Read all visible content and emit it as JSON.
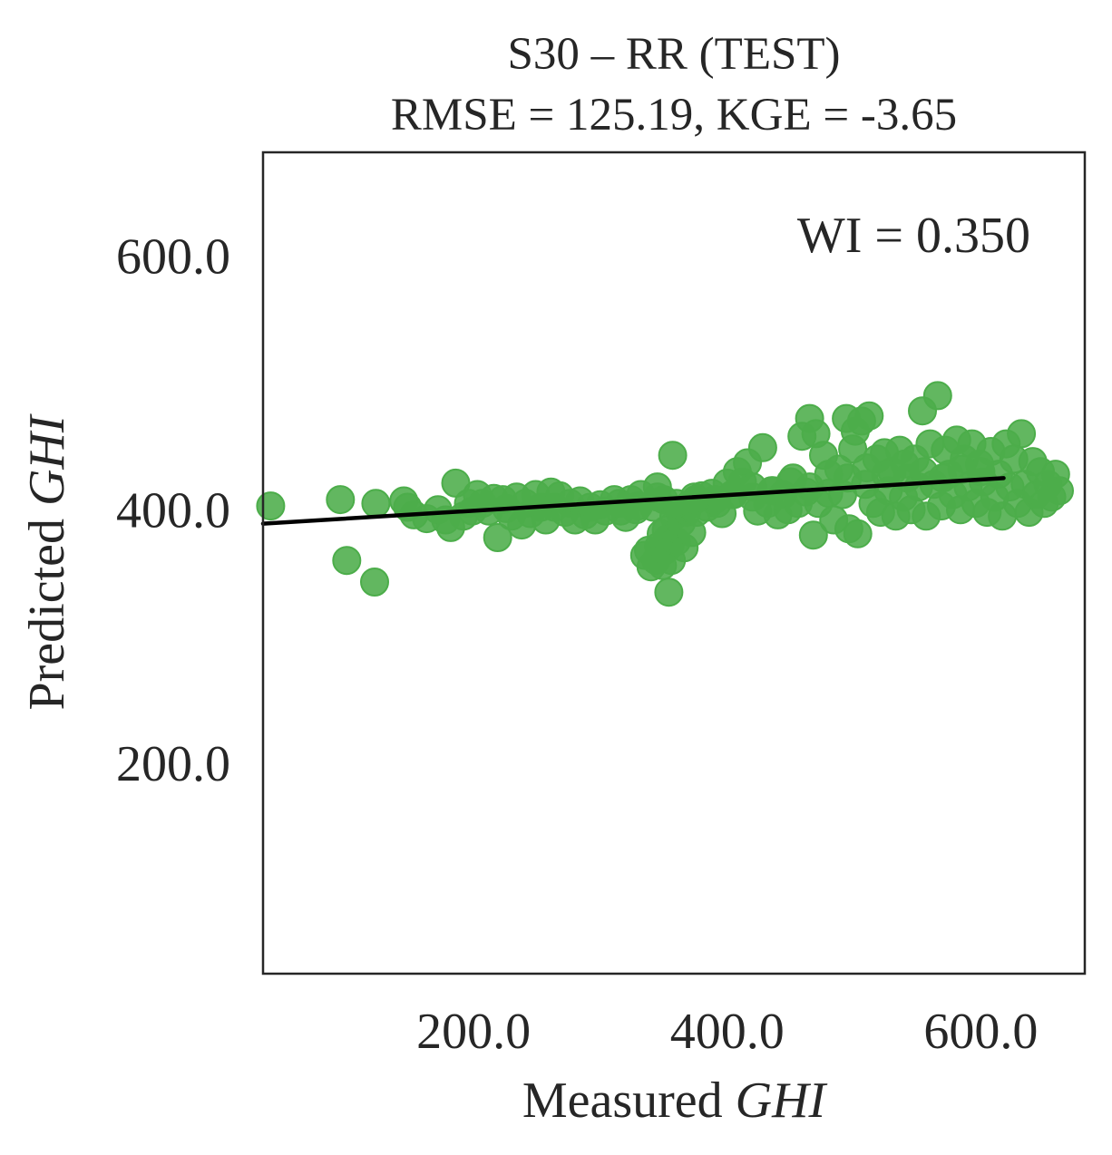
{
  "chart_data": {
    "type": "scatter",
    "title_line1": "S30 – RR (TEST)",
    "title_line2": "RMSE = 125.19, KGE = -3.65",
    "xlabel": "Measured",
    "xlabel_italic": "GHI",
    "ylabel": "Predicted",
    "ylabel_italic": "GHI",
    "annotation": "WI = 0.350",
    "xlim": [
      34,
      682
    ],
    "ylim": [
      34,
      682
    ],
    "xticks": [
      200,
      400,
      600
    ],
    "yticks": [
      200,
      400,
      600
    ],
    "xtick_labels": [
      "200.0",
      "400.0",
      "600.0"
    ],
    "ytick_labels": [
      "200.0",
      "400.0",
      "600.0"
    ],
    "grid": false,
    "point_color": "#4cad4a",
    "line_color": "#000000",
    "regression_line": {
      "x": [
        34,
        618
      ],
      "y": [
        389,
        425
      ]
    },
    "points": [
      [
        40,
        403
      ],
      [
        95,
        408
      ],
      [
        100,
        360
      ],
      [
        122,
        343
      ],
      [
        123,
        405
      ],
      [
        145,
        407
      ],
      [
        148,
        402
      ],
      [
        153,
        396
      ],
      [
        163,
        393
      ],
      [
        172,
        400
      ],
      [
        178,
        392
      ],
      [
        182,
        386
      ],
      [
        186,
        421
      ],
      [
        192,
        395
      ],
      [
        196,
        405
      ],
      [
        199,
        399
      ],
      [
        203,
        412
      ],
      [
        207,
        405
      ],
      [
        212,
        399
      ],
      [
        216,
        409
      ],
      [
        219,
        378
      ],
      [
        223,
        408
      ],
      [
        226,
        401
      ],
      [
        230,
        395
      ],
      [
        234,
        410
      ],
      [
        238,
        388
      ],
      [
        241,
        405
      ],
      [
        245,
        397
      ],
      [
        249,
        412
      ],
      [
        253,
        402
      ],
      [
        257,
        392
      ],
      [
        261,
        414
      ],
      [
        264,
        402
      ],
      [
        268,
        411
      ],
      [
        272,
        398
      ],
      [
        276,
        405
      ],
      [
        280,
        392
      ],
      [
        284,
        407
      ],
      [
        288,
        396
      ],
      [
        292,
        402
      ],
      [
        296,
        392
      ],
      [
        300,
        404
      ],
      [
        304,
        399
      ],
      [
        311,
        408
      ],
      [
        316,
        399
      ],
      [
        320,
        394
      ],
      [
        324,
        408
      ],
      [
        328,
        400
      ],
      [
        332,
        412
      ],
      [
        335,
        364
      ],
      [
        338,
        368
      ],
      [
        340,
        355
      ],
      [
        342,
        402
      ],
      [
        344,
        360
      ],
      [
        345,
        418
      ],
      [
        346,
        371
      ],
      [
        348,
        381
      ],
      [
        349,
        356
      ],
      [
        350,
        408
      ],
      [
        351,
        368
      ],
      [
        352,
        384
      ],
      [
        353,
        377
      ],
      [
        354,
        335
      ],
      [
        355,
        372
      ],
      [
        356,
        360
      ],
      [
        357,
        443
      ],
      [
        358,
        395
      ],
      [
        360,
        375
      ],
      [
        362,
        400
      ],
      [
        364,
        390
      ],
      [
        366,
        370
      ],
      [
        368,
        398
      ],
      [
        370,
        404
      ],
      [
        372,
        382
      ],
      [
        374,
        410
      ],
      [
        376,
        398
      ],
      [
        380,
        411
      ],
      [
        384,
        402
      ],
      [
        388,
        413
      ],
      [
        392,
        405
      ],
      [
        396,
        397
      ],
      [
        400,
        421
      ],
      [
        404,
        412
      ],
      [
        408,
        430
      ],
      [
        412,
        422
      ],
      [
        416,
        437
      ],
      [
        420,
        410
      ],
      [
        424,
        399
      ],
      [
        428,
        449
      ],
      [
        432,
        405
      ],
      [
        436,
        415
      ],
      [
        440,
        396
      ],
      [
        444,
        412
      ],
      [
        448,
        400
      ],
      [
        452,
        425
      ],
      [
        456,
        405
      ],
      [
        459,
        458
      ],
      [
        462,
        414
      ],
      [
        465,
        472
      ],
      [
        468,
        380
      ],
      [
        470,
        460
      ],
      [
        472,
        405
      ],
      [
        476,
        443
      ],
      [
        480,
        413
      ],
      [
        484,
        392
      ],
      [
        488,
        432
      ],
      [
        491,
        412
      ],
      [
        494,
        472
      ],
      [
        496,
        385
      ],
      [
        499,
        448
      ],
      [
        501,
        462
      ],
      [
        503,
        381
      ],
      [
        506,
        470
      ],
      [
        509,
        420
      ],
      [
        512,
        474
      ],
      [
        515,
        405
      ],
      [
        518,
        440
      ],
      [
        521,
        398
      ],
      [
        524,
        445
      ],
      [
        527,
        415
      ],
      [
        530,
        430
      ],
      [
        533,
        395
      ],
      [
        536,
        447
      ],
      [
        539,
        410
      ],
      [
        542,
        425
      ],
      [
        545,
        400
      ],
      [
        548,
        440
      ],
      [
        551,
        418
      ],
      [
        554,
        478
      ],
      [
        557,
        395
      ],
      [
        560,
        452
      ],
      [
        563,
        420
      ],
      [
        566,
        490
      ],
      [
        569,
        403
      ],
      [
        572,
        447
      ],
      [
        575,
        428
      ],
      [
        578,
        412
      ],
      [
        581,
        455
      ],
      [
        584,
        400
      ],
      [
        587,
        440
      ],
      [
        590,
        418
      ],
      [
        593,
        452
      ],
      [
        596,
        405
      ],
      [
        599,
        436
      ],
      [
        602,
        422
      ],
      [
        605,
        398
      ],
      [
        608,
        446
      ],
      [
        611,
        410
      ],
      [
        614,
        428
      ],
      [
        617,
        395
      ],
      [
        620,
        452
      ],
      [
        623,
        418
      ],
      [
        626,
        440
      ],
      [
        629,
        405
      ],
      [
        632,
        460
      ],
      [
        635,
        420
      ],
      [
        638,
        398
      ],
      [
        641,
        438
      ],
      [
        644,
        412
      ],
      [
        647,
        430
      ],
      [
        650,
        405
      ],
      [
        653,
        420
      ],
      [
        656,
        410
      ],
      [
        659,
        428
      ],
      [
        662,
        415
      ],
      [
        600,
        430
      ],
      [
        585,
        432
      ],
      [
        570,
        425
      ],
      [
        555,
        430
      ],
      [
        540,
        436
      ],
      [
        525,
        428
      ],
      [
        510,
        433
      ],
      [
        495,
        425
      ],
      [
        480,
        428
      ],
      [
        465,
        418
      ],
      [
        450,
        422
      ],
      [
        435,
        415
      ],
      [
        420,
        418
      ],
      [
        405,
        412
      ],
      [
        390,
        408
      ],
      [
        375,
        408
      ],
      [
        360,
        405
      ],
      [
        345,
        410
      ],
      [
        330,
        403
      ],
      [
        315,
        405
      ]
    ]
  }
}
